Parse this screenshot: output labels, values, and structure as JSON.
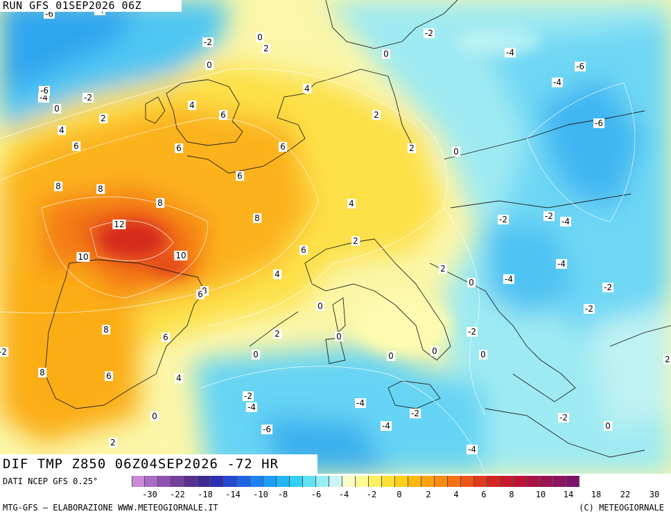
{
  "header": {
    "run_title": "RUN GFS 01SEP2026 06Z"
  },
  "map": {
    "title": "DIF TMP Z850 06Z04SEP2026 -72 HR",
    "contour_labels": [
      {
        "text": "-6"
      },
      {
        "text": "-4"
      },
      {
        "text": "0"
      },
      {
        "text": "2"
      },
      {
        "text": "-2"
      },
      {
        "text": "0"
      },
      {
        "text": "-2"
      },
      {
        "text": "0"
      },
      {
        "text": "-6"
      },
      {
        "text": "-4"
      },
      {
        "text": "-2"
      },
      {
        "text": "-4"
      },
      {
        "text": "-6"
      },
      {
        "text": "-4"
      },
      {
        "text": "0"
      },
      {
        "text": "2"
      },
      {
        "text": "4"
      },
      {
        "text": "4"
      },
      {
        "text": "6"
      },
      {
        "text": "2"
      },
      {
        "text": "4"
      },
      {
        "text": "6"
      },
      {
        "text": "6"
      },
      {
        "text": "6"
      },
      {
        "text": "2"
      },
      {
        "text": "0"
      },
      {
        "text": "-6"
      },
      {
        "text": "6"
      },
      {
        "text": "8"
      },
      {
        "text": "8"
      },
      {
        "text": "8"
      },
      {
        "text": "4"
      },
      {
        "text": "-2"
      },
      {
        "text": "-2"
      },
      {
        "text": "-4"
      },
      {
        "text": "12"
      },
      {
        "text": "8"
      },
      {
        "text": "2"
      },
      {
        "text": "10"
      },
      {
        "text": "10"
      },
      {
        "text": "6"
      },
      {
        "text": "2"
      },
      {
        "text": "-4"
      },
      {
        "text": "-4"
      },
      {
        "text": "4"
      },
      {
        "text": "8"
      },
      {
        "text": "6"
      },
      {
        "text": "0"
      },
      {
        "text": "-2"
      },
      {
        "text": "0"
      },
      {
        "text": "-2"
      },
      {
        "text": "8"
      },
      {
        "text": "6"
      },
      {
        "text": "2"
      },
      {
        "text": "0"
      },
      {
        "text": "-2"
      },
      {
        "text": "0"
      },
      {
        "text": "0"
      },
      {
        "text": "0"
      },
      {
        "text": "0"
      },
      {
        "text": "8"
      },
      {
        "text": "6"
      },
      {
        "text": "4"
      },
      {
        "text": "-2"
      },
      {
        "text": "-4"
      },
      {
        "text": "-4"
      },
      {
        "text": "-2"
      },
      {
        "text": "0"
      },
      {
        "text": "-2"
      },
      {
        "text": "-6"
      },
      {
        "text": "-4"
      },
      {
        "text": "2"
      },
      {
        "text": "0"
      },
      {
        "text": "-4"
      },
      {
        "text": "2"
      },
      {
        "text": "-2"
      }
    ]
  },
  "legend": {
    "dati": "DATI NCEP GFS 0.25°",
    "colors": [
      "#c98bd7",
      "#a86cc8",
      "#8f52b3",
      "#76409e",
      "#5b2f8f",
      "#3c2a93",
      "#2b2fb3",
      "#2648d0",
      "#1f63e6",
      "#1f80f2",
      "#1f9cf7",
      "#21b6f7",
      "#33cff5",
      "#5fe2f2",
      "#95eef3",
      "#c9f6f5",
      "#fbfdc9",
      "#fdfb92",
      "#fdf060",
      "#fde135",
      "#fdd015",
      "#fdb80f",
      "#fba10e",
      "#f88a10",
      "#f37013",
      "#ee5518",
      "#e23a1c",
      "#d52521",
      "#c91a2c",
      "#bc1438",
      "#ac1246",
      "#9c1353",
      "#8c1460",
      "#7b156b"
    ],
    "ticks": [
      "-30",
      "-22",
      "-18",
      "-14",
      "-10",
      "-8",
      "-6",
      "-4",
      "-2",
      "0",
      "2",
      "4",
      "6",
      "8",
      "10",
      "14",
      "18",
      "22",
      "30"
    ],
    "footer_left": "MTG-GFS — ELABORAZIONE WWW.METEOGIORNALE.IT",
    "footer_right": "(C) METEOGIORNALE"
  }
}
